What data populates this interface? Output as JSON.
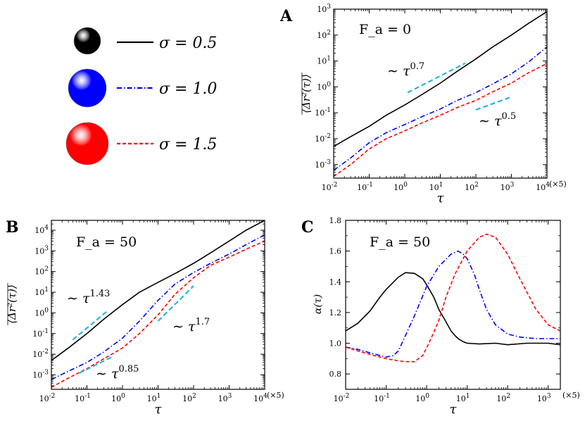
{
  "legend": {
    "entries": [
      {
        "label": "σ = 0.5",
        "color": "#000000",
        "style": "solid"
      },
      {
        "label": "σ = 1.0",
        "color": "#0000ff",
        "style": "dashdot"
      },
      {
        "label": "σ = 1.5",
        "color": "#ff0000",
        "style": "dashed"
      }
    ]
  },
  "chart_data": [
    {
      "panel": "A",
      "type": "line",
      "title": "F_a = 0",
      "xlabel": "τ",
      "x_unit": "(×5)",
      "ylabel": "⟨Δr²(τ)⟩",
      "xscale": "log",
      "yscale": "log",
      "xlim": [
        0.01,
        10000
      ],
      "ylim": [
        0.0003,
        1000
      ],
      "x_ticks": [
        "10-2",
        "10-1",
        "100",
        "101",
        "102",
        "103",
        "104"
      ],
      "y_ticks": [
        "10-3",
        "10-2",
        "10-1",
        "100",
        "101",
        "102",
        "103"
      ],
      "series": [
        {
          "name": "σ = 0.5",
          "color": "#000000",
          "style": "solid",
          "x": [
            0.01,
            0.03,
            0.1,
            0.3,
            1,
            3,
            10,
            30,
            100,
            300,
            1000,
            3000,
            10000
          ],
          "y": [
            0.005,
            0.012,
            0.03,
            0.08,
            0.2,
            0.5,
            1.4,
            4,
            12,
            35,
            100,
            280,
            800
          ]
        },
        {
          "name": "σ = 1.0",
          "color": "#0000ff",
          "style": "dashdot",
          "x": [
            0.01,
            0.03,
            0.1,
            0.3,
            1,
            3,
            10,
            30,
            100,
            300,
            1000,
            3000,
            10000
          ],
          "y": [
            0.0006,
            0.0018,
            0.007,
            0.017,
            0.035,
            0.07,
            0.14,
            0.3,
            0.6,
            1.3,
            3.2,
            9,
            35
          ]
        },
        {
          "name": "σ = 1.5",
          "color": "#ff0000",
          "style": "dashed",
          "x": [
            0.01,
            0.03,
            0.1,
            0.3,
            1,
            3,
            10,
            30,
            100,
            300,
            1000,
            3000,
            10000
          ],
          "y": [
            0.00035,
            0.001,
            0.004,
            0.01,
            0.02,
            0.04,
            0.08,
            0.16,
            0.3,
            0.65,
            1.4,
            3.5,
            8
          ]
        }
      ],
      "annotations": [
        {
          "text": "∼ τ",
          "exponent": "0.7",
          "slope": 0.7,
          "x": [
            1.2,
            50
          ],
          "y0": 0.6
        },
        {
          "text": "∼ τ",
          "exponent": "0.5",
          "slope": 0.5,
          "x": [
            100,
            1000
          ],
          "y0": 0.13
        }
      ]
    },
    {
      "panel": "B",
      "type": "line",
      "title": "F_a = 50",
      "xlabel": "τ",
      "x_unit": "(×5)",
      "ylabel": "⟨Δr²(τ)⟩",
      "xscale": "log",
      "yscale": "log",
      "xlim": [
        0.01,
        10000
      ],
      "ylim": [
        0.0002,
        30000
      ],
      "x_ticks": [
        "10-2",
        "10-1",
        "100",
        "101",
        "102",
        "103",
        "104"
      ],
      "y_ticks": [
        "10-3",
        "10-2",
        "10-1",
        "100",
        "101",
        "102",
        "103",
        "104"
      ],
      "series": [
        {
          "name": "σ = 0.5",
          "color": "#000000",
          "style": "solid",
          "x": [
            0.01,
            0.03,
            0.1,
            0.3,
            1,
            3,
            10,
            30,
            100,
            300,
            1000,
            3000,
            10000
          ],
          "y": [
            0.005,
            0.02,
            0.1,
            0.5,
            2.5,
            10,
            30,
            80,
            250,
            800,
            3000,
            10000,
            30000
          ]
        },
        {
          "name": "σ = 1.0",
          "color": "#0000ff",
          "style": "dashdot",
          "x": [
            0.01,
            0.03,
            0.1,
            0.3,
            1,
            3,
            10,
            30,
            100,
            300,
            1000,
            3000,
            10000
          ],
          "y": [
            0.0006,
            0.0015,
            0.004,
            0.013,
            0.06,
            0.4,
            4,
            25,
            90,
            250,
            700,
            2000,
            6000
          ]
        },
        {
          "name": "σ = 1.5",
          "color": "#ff0000",
          "style": "dashed",
          "x": [
            0.01,
            0.03,
            0.1,
            0.3,
            1,
            3,
            10,
            30,
            100,
            300,
            1000,
            3000,
            10000
          ],
          "y": [
            0.00025,
            0.0007,
            0.002,
            0.006,
            0.02,
            0.1,
            0.8,
            8,
            50,
            200,
            500,
            1200,
            3000
          ]
        }
      ],
      "annotations": [
        {
          "text": "∼ τ",
          "exponent": "1.43",
          "slope": 1.43,
          "x": [
            0.04,
            0.4
          ],
          "y0": 0.05
        },
        {
          "text": "∼ τ",
          "exponent": "1.7",
          "slope": 1.7,
          "x": [
            10,
            100
          ],
          "y0": 0.4
        },
        {
          "text": "∼ τ",
          "exponent": "0.85",
          "slope": 0.85,
          "x": [
            0.06,
            0.5
          ],
          "y0": 0.0012
        }
      ]
    },
    {
      "panel": "C",
      "type": "line",
      "title": "F_a = 50",
      "xlabel": "τ",
      "x_unit": "(×5)",
      "ylabel": "α(τ)",
      "xscale": "log",
      "yscale": "linear",
      "xlim": [
        0.01,
        2000
      ],
      "ylim": [
        0.7,
        1.8
      ],
      "x_ticks": [
        "10-2",
        "10-1",
        "100",
        "101",
        "102",
        "103"
      ],
      "y_ticks": [
        "0.8",
        "1.0",
        "1.2",
        "1.4",
        "1.6",
        "1.8"
      ],
      "series": [
        {
          "name": "σ = 0.5",
          "color": "#000000",
          "style": "solid",
          "x": [
            0.01,
            0.02,
            0.04,
            0.07,
            0.1,
            0.2,
            0.3,
            0.5,
            0.8,
            1,
            1.5,
            2,
            3,
            4,
            5,
            6,
            8,
            10,
            20,
            50,
            100,
            300,
            1000,
            2000
          ],
          "y": [
            1.08,
            1.13,
            1.21,
            1.3,
            1.35,
            1.43,
            1.46,
            1.455,
            1.42,
            1.38,
            1.3,
            1.22,
            1.14,
            1.08,
            1.05,
            1.03,
            1.01,
            1.0,
            0.995,
            1.0,
            0.99,
            1.0,
            1.0,
            0.99
          ]
        },
        {
          "name": "σ = 1.0",
          "color": "#0000ff",
          "style": "dashdot",
          "x": [
            0.01,
            0.02,
            0.05,
            0.1,
            0.15,
            0.2,
            0.3,
            0.5,
            1,
            2,
            4,
            6,
            8,
            10,
            15,
            20,
            30,
            50,
            100,
            200,
            500,
            1000,
            2000
          ],
          "y": [
            0.975,
            0.96,
            0.93,
            0.91,
            0.92,
            0.95,
            1.05,
            1.18,
            1.37,
            1.5,
            1.58,
            1.6,
            1.58,
            1.55,
            1.45,
            1.35,
            1.22,
            1.12,
            1.06,
            1.04,
            1.03,
            1.03,
            1.03
          ]
        },
        {
          "name": "σ = 1.5",
          "color": "#ff0000",
          "style": "dashed",
          "x": [
            0.01,
            0.02,
            0.05,
            0.1,
            0.2,
            0.3,
            0.5,
            0.8,
            1,
            1.5,
            2,
            3,
            5,
            10,
            20,
            30,
            50,
            100,
            200,
            500,
            1000,
            2000
          ],
          "y": [
            0.975,
            0.95,
            0.92,
            0.9,
            0.885,
            0.88,
            0.88,
            0.92,
            0.97,
            1.07,
            1.15,
            1.3,
            1.45,
            1.6,
            1.69,
            1.71,
            1.69,
            1.58,
            1.42,
            1.22,
            1.12,
            1.08
          ]
        }
      ],
      "annotations": []
    }
  ],
  "panel_letters": [
    "A",
    "B",
    "C"
  ]
}
